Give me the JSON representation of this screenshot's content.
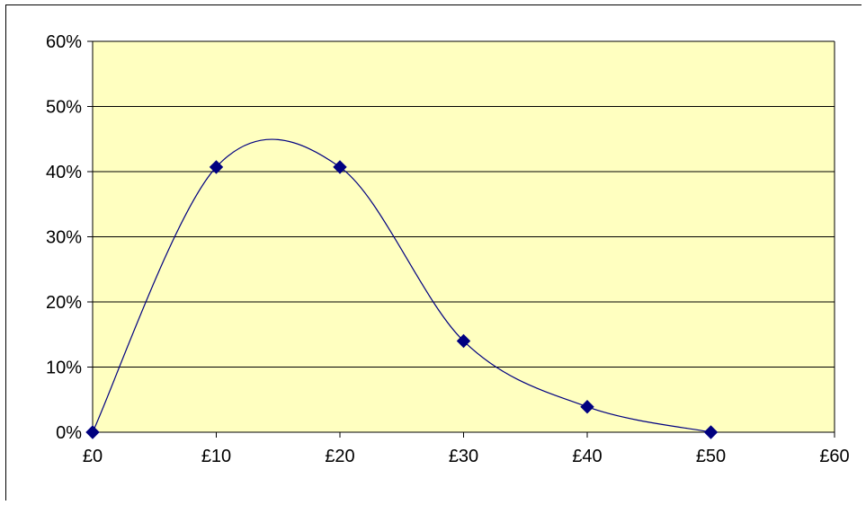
{
  "chart_data": {
    "type": "scatter",
    "title": "",
    "xlabel": "",
    "ylabel": "",
    "x_ticks": [
      "£0",
      "£10",
      "£20",
      "£30",
      "£40",
      "£50",
      "£60"
    ],
    "y_ticks": [
      "0%",
      "10%",
      "20%",
      "30%",
      "40%",
      "50%",
      "60%"
    ],
    "xlim": [
      0,
      60
    ],
    "ylim": [
      0,
      0.6
    ],
    "grid": "horizontal",
    "legend": "none",
    "smoothed_line": true,
    "series": [
      {
        "x": [
          0,
          10,
          20,
          30,
          40,
          50
        ],
        "y": [
          0,
          0.407,
          0.407,
          0.14,
          0.039,
          0
        ]
      }
    ],
    "colors": {
      "plot_background": "#FFFFC0",
      "line": "#000080",
      "marker": "#000080",
      "grid": "#000000",
      "axis": "#000000"
    }
  }
}
